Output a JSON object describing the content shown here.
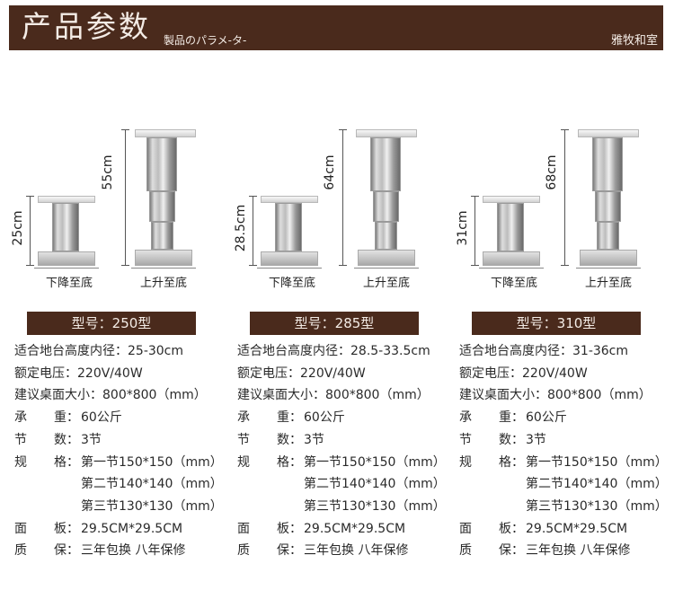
{
  "header": {
    "title": "产品参数",
    "subtitle": "製品のパラメ-タ-",
    "brand": "雅牧和室"
  },
  "columns": [
    {
      "collapsed_height": "25cm",
      "extended_height": "55cm",
      "collapsed_caption": "下降至底",
      "extended_caption": "上升至底",
      "model": "型号：250型",
      "specs": {
        "fit_label": "适合地台高度内径：",
        "fit_value": "25-30cm",
        "voltage_label": "额定电压：",
        "voltage_value": "220V/40W",
        "desk_label": "建议桌面大小：",
        "desk_value": "800*800（mm）",
        "load_a": "承",
        "load_b": "重：",
        "load_value": "60公斤",
        "sections_a": "节",
        "sections_b": "数：",
        "sections_value": "3节",
        "size_a": "规",
        "size_b": "格：",
        "size_1": "第一节150*150（mm）",
        "size_2": "第二节140*140（mm）",
        "size_3": "第三节130*130（mm）",
        "panel_a": "面",
        "panel_b": "板：",
        "panel_value": "29.5CM*29.5CM",
        "warranty_a": "质",
        "warranty_b": "保：",
        "warranty_value": "三年包换 八年保修"
      }
    },
    {
      "collapsed_height": "28.5cm",
      "extended_height": "64cm",
      "collapsed_caption": "下降至底",
      "extended_caption": "上升至底",
      "model": "型号：285型",
      "specs": {
        "fit_label": "适合地台高度内径：",
        "fit_value": "28.5-33.5cm",
        "voltage_label": "额定电压：",
        "voltage_value": "220V/40W",
        "desk_label": "建议桌面大小：",
        "desk_value": "800*800（mm）",
        "load_a": "承",
        "load_b": "重：",
        "load_value": "60公斤",
        "sections_a": "节",
        "sections_b": "数：",
        "sections_value": "3节",
        "size_a": "规",
        "size_b": "格：",
        "size_1": "第一节150*150（mm）",
        "size_2": "第二节140*140（mm）",
        "size_3": "第三节130*130（mm）",
        "panel_a": "面",
        "panel_b": "板：",
        "panel_value": "29.5CM*29.5CM",
        "warranty_a": "质",
        "warranty_b": "保：",
        "warranty_value": "三年包换 八年保修"
      }
    },
    {
      "collapsed_height": "31cm",
      "extended_height": "68cm",
      "collapsed_caption": "下降至底",
      "extended_caption": "上升至底",
      "model": "型号：310型",
      "specs": {
        "fit_label": "适合地台高度内径：",
        "fit_value": "31-36cm",
        "voltage_label": "额定电压：",
        "voltage_value": "220V/40W",
        "desk_label": "建议桌面大小：",
        "desk_value": "800*800（mm）",
        "load_a": "承",
        "load_b": "重：",
        "load_value": "60公斤",
        "sections_a": "节",
        "sections_b": "数：",
        "sections_value": "3节",
        "size_a": "规",
        "size_b": "格：",
        "size_1": "第一节150*150（mm）",
        "size_2": "第二节140*140（mm）",
        "size_3": "第三节130*130（mm）",
        "panel_a": "面",
        "panel_b": "板：",
        "panel_value": "29.5CM*29.5CM",
        "warranty_a": "质",
        "warranty_b": "保：",
        "warranty_value": "三年包换 八年保修"
      }
    }
  ]
}
